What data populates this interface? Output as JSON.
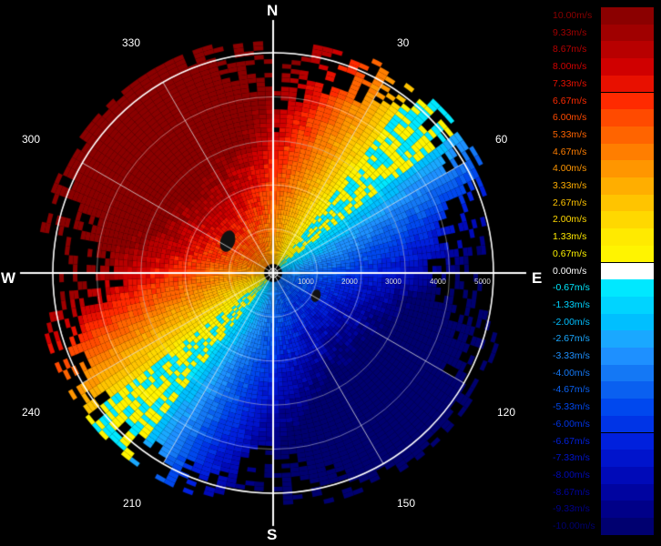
{
  "compass": {
    "north": "N",
    "south": "S",
    "east": "E",
    "west": "W"
  },
  "bearings": [
    "30",
    "60",
    "120",
    "150",
    "210",
    "240",
    "300",
    "330"
  ],
  "range_labels": [
    "1000",
    "2000",
    "3000",
    "4000",
    "5000"
  ],
  "legend": {
    "labels": [
      "10.00m/s",
      "9.33m/s",
      "8.67m/s",
      "8.00m/s",
      "7.33m/s",
      "6.67m/s",
      "6.00m/s",
      "5.33m/s",
      "4.67m/s",
      "4.00m/s",
      "3.33m/s",
      "2.67m/s",
      "2.00m/s",
      "1.33m/s",
      "0.67m/s",
      "0.00m/s",
      "-0.67m/s",
      "-1.33m/s",
      "-2.00m/s",
      "-2.67m/s",
      "-3.33m/s",
      "-4.00m/s",
      "-4.67m/s",
      "-5.33m/s",
      "-6.00m/s",
      "-6.67m/s",
      "-7.33m/s",
      "-8.00m/s",
      "-8.67m/s",
      "-9.33m/s",
      "-10.00m/s"
    ],
    "colors": [
      "#8b0000",
      "#a00000",
      "#b80000",
      "#d00000",
      "#e81000",
      "#ff2a00",
      "#ff4a00",
      "#ff6400",
      "#ff7e00",
      "#ff9600",
      "#ffae00",
      "#ffc400",
      "#ffd800",
      "#ffea00",
      "#fff400",
      "#ffffff",
      "#00e8ff",
      "#00d4ff",
      "#00bfff",
      "#1aa8ff",
      "#1e90ff",
      "#1478f5",
      "#0a60f0",
      "#0048ee",
      "#0034e6",
      "#0020dd",
      "#0014cc",
      "#000ab8",
      "#0004a0",
      "#000088",
      "#000070"
    ]
  }
}
